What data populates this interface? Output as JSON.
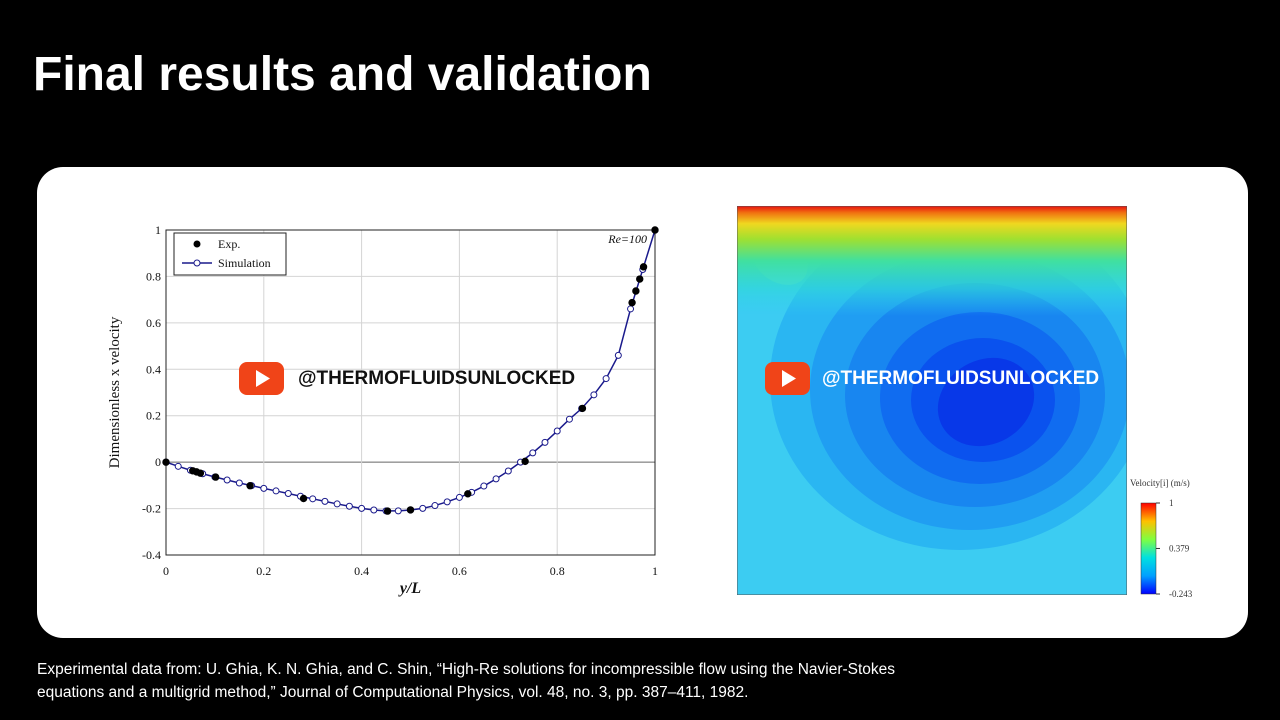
{
  "title": "Final results and validation",
  "watermark": "@THERMOFLUIDSUNLOCKED",
  "citation": [
    "Experimental data from: U. Ghia, K. N. Ghia, and C. Shin, “High-Re solutions for incompressible flow using the Navier-Stokes",
    "equations and a multigrid method,” Journal of Computational Physics, vol. 48, no. 3, pp. 387–411, 1982."
  ],
  "contour": {
    "colorbar_title": "Velocity[i] (m/s)",
    "colorbar_lim": [
      -0.243,
      1
    ],
    "colorbar_ticks": [
      1,
      0.379,
      -0.243
    ]
  },
  "chart_data": {
    "type": "line",
    "annotation": "Re=100",
    "x_label": "y/L",
    "y_label": "Dimensionless x velocity",
    "xlim": [
      0,
      1
    ],
    "xticks": [
      0,
      0.2,
      0.4,
      0.6,
      0.8,
      1
    ],
    "ylim": [
      -0.4,
      1
    ],
    "yticks": [
      -0.4,
      -0.2,
      0,
      0.2,
      0.4,
      0.6,
      0.8,
      1
    ],
    "grid": true,
    "legend": "upper left",
    "series": [
      {
        "name": "Exp.",
        "color": "#000000",
        "style": "markers",
        "x": [
          0,
          0.0547,
          0.0625,
          0.0703,
          0.1016,
          0.1719,
          0.2813,
          0.4531,
          0.5,
          0.6172,
          0.7344,
          0.8516,
          0.9531,
          0.9609,
          0.9688,
          0.9766,
          1
        ],
        "values": [
          0,
          -0.03717,
          -0.04192,
          -0.04775,
          -0.06434,
          -0.1015,
          -0.15662,
          -0.2109,
          -0.20581,
          -0.13641,
          0.00332,
          0.23151,
          0.68717,
          0.73722,
          0.78871,
          0.84123,
          1
        ]
      },
      {
        "name": "Simulation",
        "color": "#1a1a8c",
        "style": "line+markers",
        "x": [
          0,
          0.025,
          0.05,
          0.075,
          0.1,
          0.125,
          0.15,
          0.175,
          0.2,
          0.225,
          0.25,
          0.275,
          0.3,
          0.325,
          0.35,
          0.375,
          0.4,
          0.425,
          0.45,
          0.475,
          0.5,
          0.525,
          0.55,
          0.575,
          0.6,
          0.625,
          0.65,
          0.675,
          0.7,
          0.725,
          0.75,
          0.775,
          0.8,
          0.825,
          0.85,
          0.875,
          0.9,
          0.925,
          0.95,
          0.975,
          1
        ],
        "values": [
          0,
          -0.018,
          -0.035,
          -0.05,
          -0.064,
          -0.077,
          -0.09,
          -0.101,
          -0.113,
          -0.124,
          -0.135,
          -0.147,
          -0.158,
          -0.169,
          -0.18,
          -0.19,
          -0.199,
          -0.206,
          -0.21,
          -0.21,
          -0.206,
          -0.199,
          -0.187,
          -0.171,
          -0.152,
          -0.13,
          -0.103,
          -0.072,
          -0.038,
          0,
          0.04,
          0.085,
          0.134,
          0.185,
          0.231,
          0.29,
          0.36,
          0.46,
          0.66,
          0.83,
          1
        ]
      }
    ]
  }
}
